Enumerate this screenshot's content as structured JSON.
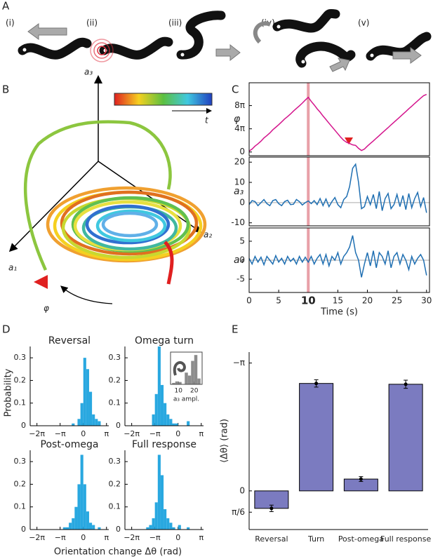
{
  "figure": {
    "panel_a": {
      "label": "A",
      "steps": [
        "(i)",
        "(ii)",
        "(iii)",
        "(iv)",
        "(v)"
      ]
    },
    "panel_b": {
      "label": "B",
      "axis_labels": [
        "a₁",
        "a₂",
        "a₃"
      ],
      "rotation": "φ",
      "time": "t"
    },
    "panel_c": {
      "label": "C"
    },
    "panel_d": {
      "label": "D",
      "ylabel": "Probability",
      "xlabel": "Orientation change Δθ (rad)"
    },
    "panel_e": {
      "label": "E"
    }
  },
  "chart_data": [
    {
      "type": "line",
      "ylabel": "φ",
      "color": "#d4148c",
      "event_time": 10,
      "x": [
        0,
        0.5,
        1,
        1.5,
        2,
        2.5,
        3,
        3.5,
        4,
        4.5,
        5,
        5.5,
        6,
        6.5,
        7,
        7.5,
        8,
        8.5,
        9,
        9.5,
        10,
        10.5,
        11,
        11.5,
        12,
        12.5,
        13,
        13.5,
        14,
        14.5,
        15,
        15.5,
        16,
        16.5,
        17,
        17.5,
        18,
        18.5,
        19,
        19.5,
        20,
        20.5,
        21,
        21.5,
        22,
        22.5,
        23,
        23.5,
        24,
        24.5,
        25,
        25.5,
        26,
        26.5,
        27,
        27.5,
        28,
        28.5,
        29,
        29.5,
        30
      ],
      "values": [
        0.5,
        1.6,
        3.2,
        4.4,
        5.9,
        7.6,
        8.9,
        10.3,
        12.0,
        13.4,
        14.8,
        16.3,
        17.9,
        19.2,
        20.6,
        22.2,
        23.6,
        25.0,
        26.5,
        28.1,
        29.6,
        27.4,
        25.5,
        23.4,
        21.6,
        19.5,
        17.6,
        15.6,
        13.7,
        11.8,
        9.9,
        8.0,
        6.3,
        5.2,
        4.6,
        3.9,
        3.6,
        2.0,
        0.8,
        1.6,
        3.2,
        4.6,
        6.0,
        7.5,
        8.9,
        10.4,
        11.8,
        13.2,
        14.7,
        16.1,
        17.6,
        19.0,
        20.5,
        21.9,
        23.4,
        24.8,
        26.3,
        27.7,
        29.2,
        30.5,
        31.2
      ],
      "xlim": [
        0,
        30.5
      ],
      "ylim": [
        -2,
        37.5
      ],
      "yticks": [
        0,
        {
          "value": 12.566,
          "label": "4π"
        },
        {
          "value": 25.133,
          "label": "8π"
        }
      ]
    },
    {
      "type": "line",
      "ylabel": "a₃",
      "color": "#1f6fb2",
      "event_time": 10,
      "zero_line": true,
      "x": [
        0,
        0.5,
        1,
        1.5,
        2,
        2.5,
        3,
        3.5,
        4,
        4.5,
        5,
        5.5,
        6,
        6.5,
        7,
        7.5,
        8,
        8.5,
        9,
        9.5,
        10,
        10.5,
        11,
        11.5,
        12,
        12.5,
        13,
        13.5,
        14,
        14.5,
        15,
        15.5,
        16,
        16.5,
        17,
        17.5,
        18,
        18.5,
        19,
        19.5,
        20,
        20.5,
        21,
        21.5,
        22,
        22.5,
        23,
        23.5,
        24,
        24.5,
        25,
        25.5,
        26,
        26.5,
        27,
        27.5,
        28,
        28.5,
        29,
        29.5,
        30
      ],
      "values": [
        -1,
        1,
        0.5,
        -1.5,
        0,
        1.5,
        -0.5,
        -1.5,
        1,
        1.5,
        -0.5,
        -1.5,
        0.5,
        1.2,
        -1,
        -0.8,
        1.5,
        0.5,
        -1.2,
        0,
        0.8,
        -0.5,
        1,
        -1,
        2,
        -1.5,
        1.8,
        -2,
        0.5,
        2.5,
        -1,
        -2.5,
        1.5,
        3,
        8,
        17,
        19,
        10,
        -3,
        -2,
        3,
        -1,
        4,
        -3,
        5.5,
        -4,
        2,
        4.5,
        -3,
        -1,
        4,
        -2,
        3.5,
        -3.5,
        4.5,
        -2.5,
        2,
        5,
        -2,
        2.5,
        -5
      ],
      "xlim": [
        0,
        30.5
      ],
      "ylim": [
        -11.5,
        22.5
      ],
      "yticks": [
        -10,
        0,
        10,
        20
      ]
    },
    {
      "type": "line",
      "ylabel": "a₄",
      "color": "#1f6fb2",
      "event_time": 10,
      "zero_line": true,
      "xlabel": "Time (s)",
      "x": [
        0,
        0.5,
        1,
        1.5,
        2,
        2.5,
        3,
        3.5,
        4,
        4.5,
        5,
        5.5,
        6,
        6.5,
        7,
        7.5,
        8,
        8.5,
        9,
        9.5,
        10,
        10.5,
        11,
        11.5,
        12,
        12.5,
        13,
        13.5,
        14,
        14.5,
        15,
        15.5,
        16,
        16.5,
        17,
        17.5,
        18,
        18.5,
        19,
        19.5,
        20,
        20.5,
        21,
        21.5,
        22,
        22.5,
        23,
        23.5,
        24,
        24.5,
        25,
        25.5,
        26,
        26.5,
        27,
        27.5,
        28,
        28.5,
        29,
        29.5,
        30
      ],
      "values": [
        0.5,
        -1,
        1,
        -0.5,
        0.8,
        -1.2,
        1,
        0,
        -1,
        1.2,
        -0.5,
        0.5,
        -1,
        1,
        -0.3,
        0.5,
        -1,
        1,
        -0.5,
        0.8,
        -0.5,
        1,
        -1,
        0.5,
        1.5,
        -1,
        1.5,
        -1.5,
        1,
        0,
        2,
        -1,
        1,
        2,
        3.5,
        6.5,
        2,
        0,
        -4.5,
        -1,
        2,
        -1.5,
        2.5,
        -2,
        2,
        1,
        -1,
        2.5,
        -2,
        1,
        2,
        -1,
        1.5,
        0,
        -2.5,
        1,
        -1,
        0.5,
        1.5,
        0,
        -4
      ],
      "xlim": [
        0,
        30.5
      ],
      "ylim": [
        -8.5,
        8.5
      ],
      "yticks": [
        -5,
        0,
        5
      ],
      "xticks": [
        0,
        5,
        10,
        15,
        20,
        25,
        30
      ]
    },
    {
      "type": "histogram",
      "title": "Reversal",
      "color": "#29a8e0",
      "bins": [
        -6.283,
        -5.89,
        -5.498,
        -5.105,
        -4.712,
        -4.32,
        -3.927,
        -3.534,
        -3.142,
        -2.749,
        -2.356,
        -1.963,
        -1.571,
        -1.178,
        -0.785,
        -0.393,
        0,
        0.393,
        0.785,
        1.178,
        1.571,
        1.963,
        2.356,
        2.749,
        3.142
      ],
      "values": [
        0,
        0,
        0,
        0,
        0,
        0,
        0,
        0,
        0,
        0,
        0,
        0,
        0.01,
        0,
        0.03,
        0.1,
        0.3,
        0.25,
        0.15,
        0.05,
        0.03,
        0.02,
        0,
        0
      ],
      "xlim": [
        -7.2,
        3.45
      ],
      "ylim": [
        0,
        0.35
      ],
      "yticks": [
        0,
        0.1,
        0.2,
        0.3
      ],
      "xticks": [
        {
          "value": -6.283,
          "label": "−2π"
        },
        {
          "value": -3.142,
          "label": "−π"
        },
        0,
        {
          "value": 3.142,
          "label": "π"
        }
      ]
    },
    {
      "type": "histogram",
      "title": "Omega turn",
      "color": "#29a8e0",
      "bins": [
        -6.283,
        -5.89,
        -5.498,
        -5.105,
        -4.712,
        -4.32,
        -3.927,
        -3.534,
        -3.142,
        -2.749,
        -2.356,
        -1.963,
        -1.571,
        -1.178,
        -0.785,
        -0.393,
        0,
        0.393,
        0.785,
        1.178,
        1.571,
        1.963,
        2.356,
        2.749,
        3.142
      ],
      "values": [
        0,
        0,
        0,
        0,
        0,
        0,
        0,
        0.05,
        0.14,
        0.35,
        0.18,
        0.1,
        0.05,
        0.03,
        0.01,
        0.01,
        0,
        0,
        0,
        0.02,
        0,
        0,
        0,
        0
      ],
      "xlim": [
        -7.2,
        3.45
      ],
      "ylim": [
        0,
        0.35
      ],
      "yticks": [
        0,
        0.1,
        0.2,
        0.3
      ],
      "xticks": [
        {
          "value": -6.283,
          "label": "−2π"
        },
        {
          "value": -3.142,
          "label": "−π"
        },
        0,
        {
          "value": 3.142,
          "label": "π"
        }
      ]
    },
    {
      "type": "histogram",
      "frame": true,
      "color": "#8c8c8c",
      "xlabel": "a₃ ampl.",
      "bins": [
        6,
        8,
        10,
        12,
        14,
        16,
        18,
        20,
        22,
        24
      ],
      "values": [
        0.05,
        0.1,
        0.08,
        0,
        0.4,
        0.3,
        0.8,
        1,
        0.2
      ],
      "xlim": [
        5,
        25
      ],
      "ylim": [
        0,
        1.1
      ],
      "xticks": [
        10,
        20
      ]
    },
    {
      "type": "histogram",
      "title": "Post-omega",
      "color": "#29a8e0",
      "bins": [
        -6.283,
        -5.89,
        -5.498,
        -5.105,
        -4.712,
        -4.32,
        -3.927,
        -3.534,
        -3.142,
        -2.749,
        -2.356,
        -1.963,
        -1.571,
        -1.178,
        -0.785,
        -0.393,
        0,
        0.393,
        0.785,
        1.178,
        1.571,
        1.963,
        2.356,
        2.749,
        3.142
      ],
      "values": [
        0,
        0,
        0,
        0,
        0,
        0,
        0,
        0,
        0,
        0.01,
        0.01,
        0.03,
        0.05,
        0.1,
        0.2,
        0.33,
        0.2,
        0.08,
        0.03,
        0.02,
        0,
        0.01,
        0,
        0
      ],
      "xlim": [
        -7.2,
        3.45
      ],
      "ylim": [
        0,
        0.35
      ],
      "yticks": [
        0,
        0.1,
        0.2,
        0.3
      ],
      "xticks": [
        {
          "value": -6.283,
          "label": "−2π"
        },
        {
          "value": -3.142,
          "label": "−π"
        },
        0,
        {
          "value": 3.142,
          "label": "π"
        }
      ]
    },
    {
      "type": "histogram",
      "title": "Full response",
      "color": "#29a8e0",
      "bins": [
        -6.283,
        -5.89,
        -5.498,
        -5.105,
        -4.712,
        -4.32,
        -3.927,
        -3.534,
        -3.142,
        -2.749,
        -2.356,
        -1.963,
        -1.571,
        -1.178,
        -0.785,
        -0.393,
        0,
        0.393,
        0.785,
        1.178,
        1.571,
        1.963,
        2.356,
        2.749,
        3.142
      ],
      "values": [
        0,
        0,
        0,
        0,
        0,
        0.01,
        0.02,
        0.05,
        0.12,
        0.33,
        0.24,
        0.09,
        0.05,
        0.03,
        0.01,
        0,
        0.02,
        0,
        0,
        0.01,
        0,
        0,
        0,
        0
      ],
      "xlim": [
        -7.2,
        3.45
      ],
      "ylim": [
        0,
        0.35
      ],
      "yticks": [
        0,
        0.1,
        0.2,
        0.3
      ],
      "xticks": [
        {
          "value": -6.283,
          "label": "−2π"
        },
        {
          "value": -3.142,
          "label": "−π"
        },
        0,
        {
          "value": 3.142,
          "label": "π"
        }
      ]
    },
    {
      "type": "bar",
      "ylabel": "⟨Δθ⟩ (rad)",
      "color": "#7b7bc0",
      "categories": [
        "Reversal",
        "Turn",
        "Post-omega",
        "Full response"
      ],
      "values": [
        0.43,
        -2.64,
        -0.29,
        -2.62
      ],
      "errors": [
        0.08,
        0.09,
        0.06,
        0.1
      ],
      "ylim": [
        0.95,
        -3.41
      ],
      "yticks": [
        {
          "value": 0.5236,
          "label": "π/6"
        },
        0,
        {
          "value": -3.1416,
          "label": "−π"
        }
      ]
    }
  ]
}
